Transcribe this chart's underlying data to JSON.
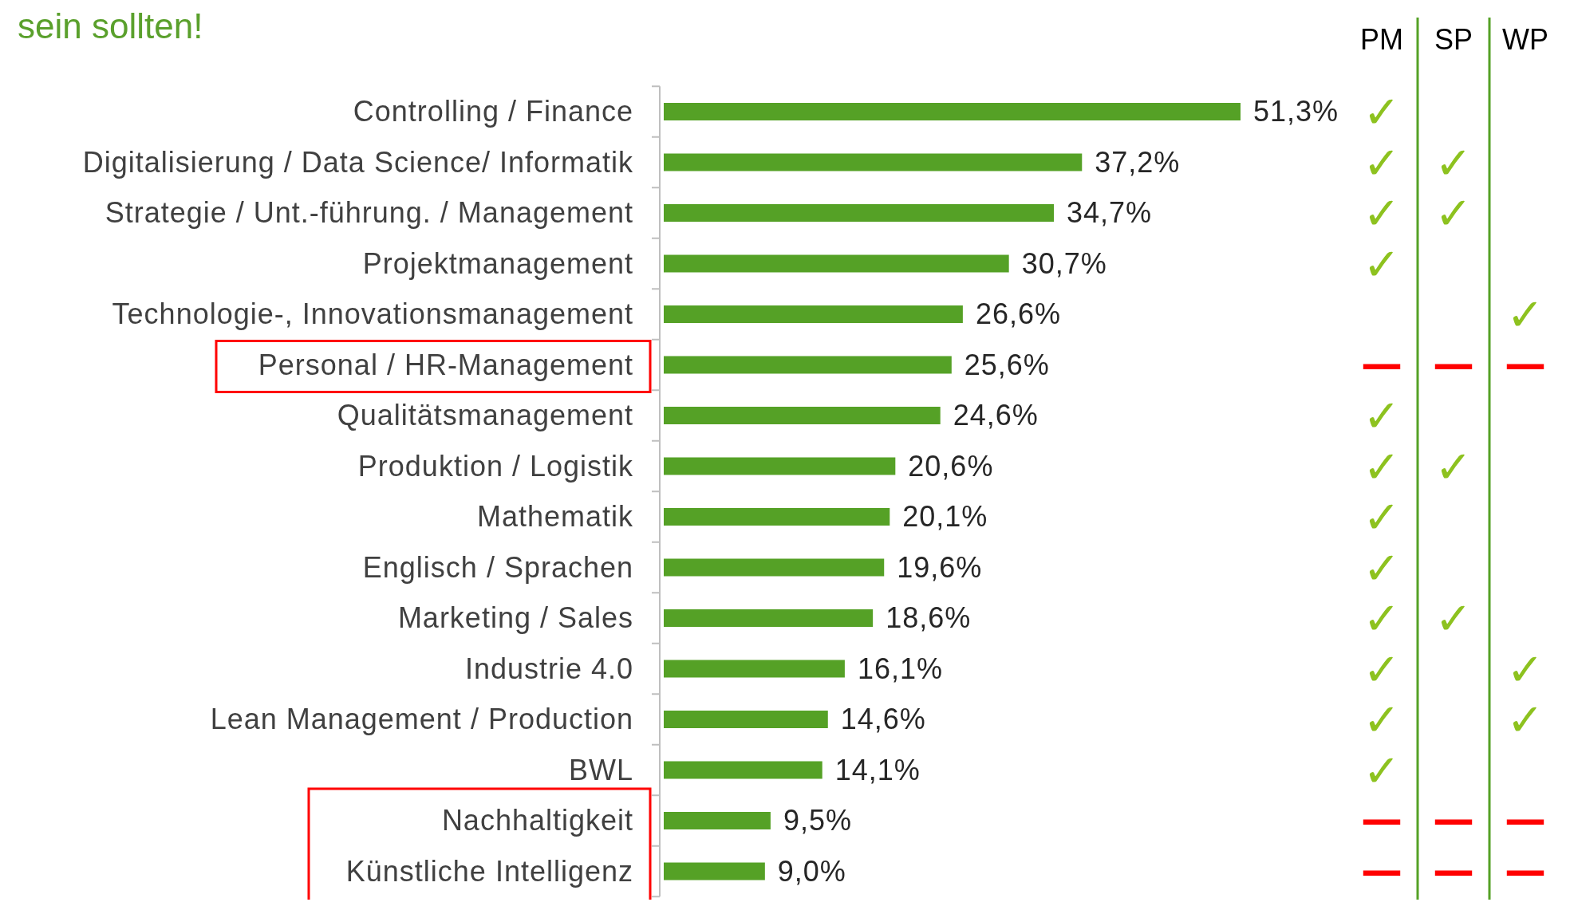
{
  "chart_data": [
    {
      "type": "bar",
      "orientation": "horizontal",
      "title": "sein sollten!",
      "categories": [
        "Controlling / Finance",
        "Digitalisierung / Data Science/ Informatik",
        "Strategie / Unt.-führung. / Management",
        "Projektmanagement",
        "Technologie-, Innovationsmanagement",
        "Personal / HR-Management",
        "Qualitätsmanagement",
        "Produktion / Logistik",
        "Mathematik",
        "Englisch / Sprachen",
        "Marketing / Sales",
        "Industrie 4.0",
        "Lean Management / Production",
        "BWL",
        "Nachhaltigkeit",
        "Künstliche Intelligenz"
      ],
      "values": [
        51.3,
        37.2,
        34.7,
        30.7,
        26.6,
        25.6,
        24.6,
        20.6,
        20.1,
        19.6,
        18.6,
        16.1,
        14.6,
        14.1,
        9.5,
        9.0
      ],
      "value_labels": [
        "51,3%",
        "37,2%",
        "34,7%",
        "30,7%",
        "26,6%",
        "25,6%",
        "24,6%",
        "20,6%",
        "20,1%",
        "19,6%",
        "18,6%",
        "16,1%",
        "14,6%",
        "14,1%",
        "9,5%",
        "9,0%"
      ],
      "color": "#55a126",
      "tick_labels": "y"
    },
    {
      "type": "other",
      "categories": [
        "PM",
        "SP",
        "WP"
      ],
      "y_categories": [
        null,
        null,
        null,
        null,
        null,
        null,
        null,
        null,
        null,
        null,
        null,
        null,
        null,
        null,
        null,
        null
      ],
      "cell_labels": [
        [
          "✓",
          null,
          null
        ],
        [
          "✓",
          "✓",
          null
        ],
        [
          "✓",
          "✓",
          null
        ],
        [
          "✓",
          null,
          null
        ],
        [
          null,
          null,
          "✓"
        ],
        [
          "—",
          "—",
          "—"
        ],
        [
          "✓",
          null,
          null
        ],
        [
          "✓",
          "✓",
          null
        ],
        [
          "✓",
          null,
          null
        ],
        [
          "✓",
          null,
          null
        ],
        [
          "✓",
          "✓",
          null
        ],
        [
          "✓",
          null,
          "✓"
        ],
        [
          "✓",
          null,
          "✓"
        ],
        [
          "✓",
          null,
          null
        ],
        [
          "—",
          "—",
          "—"
        ],
        [
          "—",
          "—",
          "—"
        ]
      ]
    }
  ]
}
